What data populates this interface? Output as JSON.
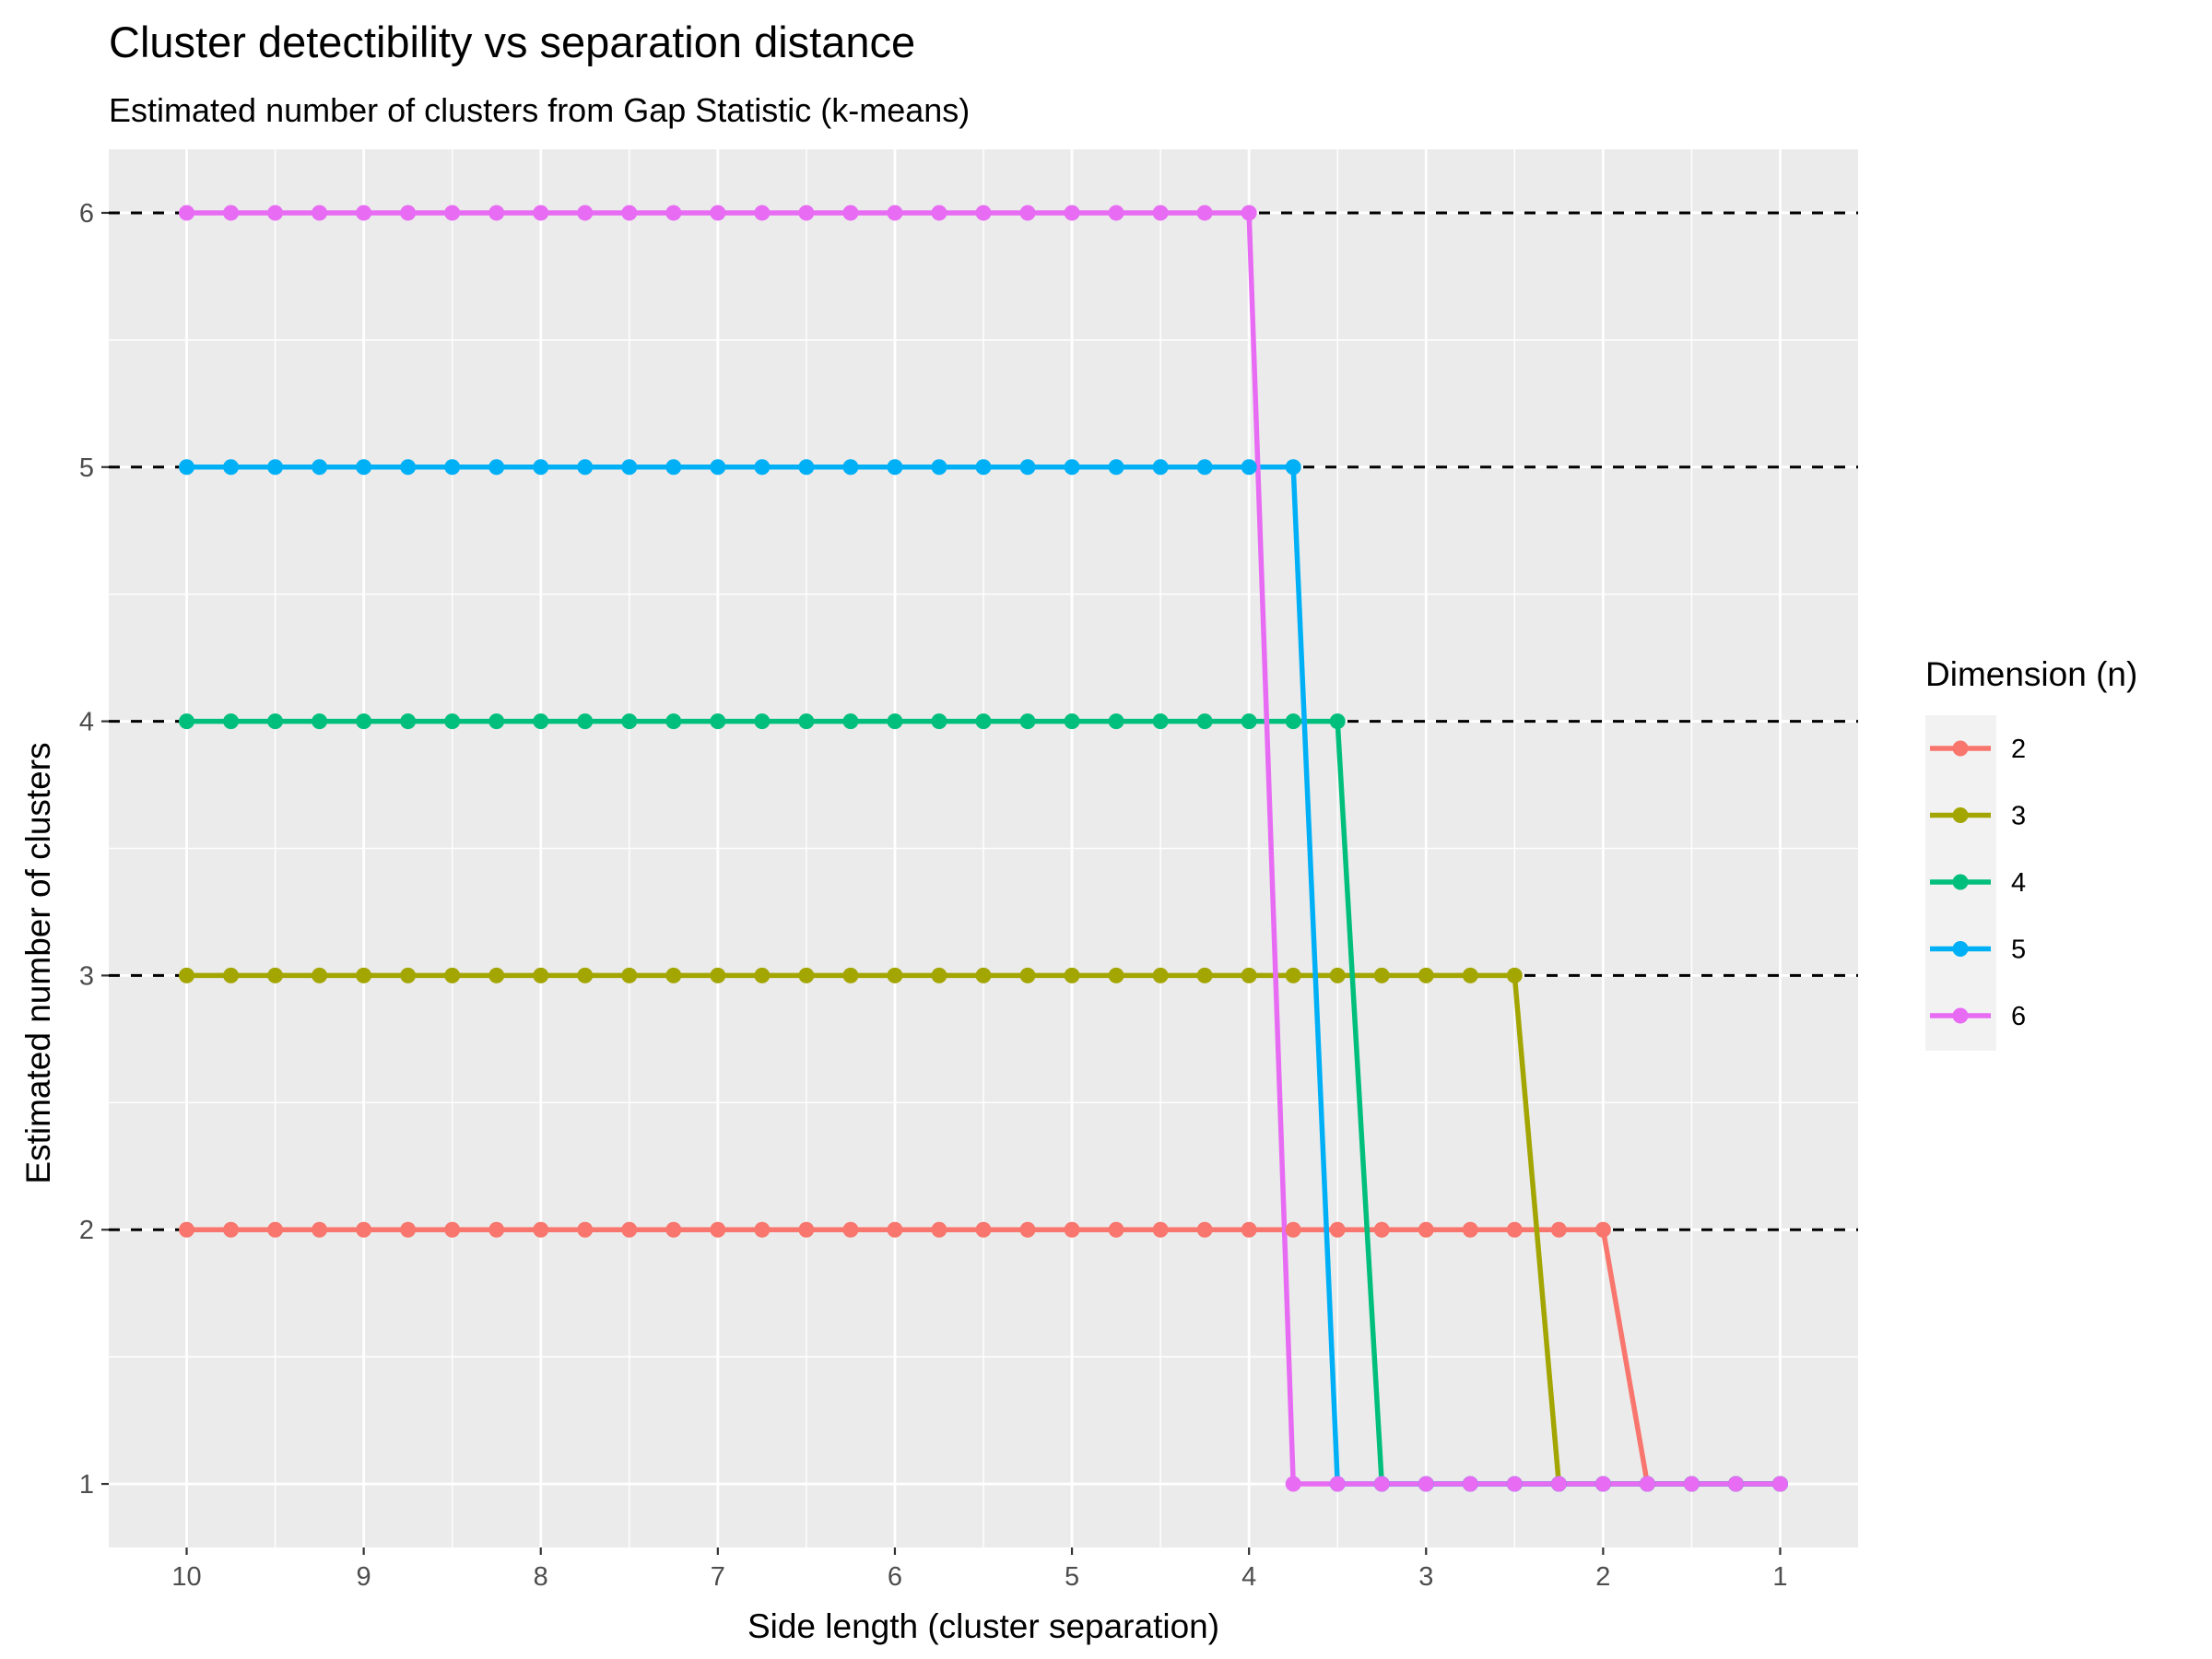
{
  "chart_data": {
    "type": "line",
    "title": "Cluster detectibility vs separation distance",
    "subtitle": "Estimated number of clusters from Gap Statistic (k-means)",
    "xlabel": "Side length (cluster separation)",
    "ylabel": "Estimated number of clusters",
    "x_reversed": true,
    "xlim": [
      0.56,
      10.44
    ],
    "ylim": [
      0.75,
      6.25
    ],
    "x_ticks": [
      "10",
      "9",
      "8",
      "7",
      "6",
      "5",
      "4",
      "3",
      "2",
      "1"
    ],
    "y_ticks": [
      "1",
      "2",
      "3",
      "4",
      "5",
      "6"
    ],
    "grid": true,
    "reference_lines_y": [
      2,
      3,
      4,
      5,
      6
    ],
    "legend_title": "Dimension (n)",
    "legend_position": "right",
    "x": [
      10,
      9.75,
      9.5,
      9.25,
      9,
      8.75,
      8.5,
      8.25,
      8,
      7.75,
      7.5,
      7.25,
      7,
      6.75,
      6.5,
      6.25,
      6,
      5.75,
      5.5,
      5.25,
      5,
      4.75,
      4.5,
      4.25,
      4,
      3.75,
      3.5,
      3.25,
      3,
      2.75,
      2.5,
      2.25,
      2,
      1.75,
      1.5,
      1.25,
      1
    ],
    "series": [
      {
        "name": "2",
        "color": "#F8766D",
        "values": [
          2,
          2,
          2,
          2,
          2,
          2,
          2,
          2,
          2,
          2,
          2,
          2,
          2,
          2,
          2,
          2,
          2,
          2,
          2,
          2,
          2,
          2,
          2,
          2,
          2,
          2,
          2,
          2,
          2,
          2,
          2,
          2,
          2,
          1,
          1,
          1,
          1
        ]
      },
      {
        "name": "3",
        "color": "#A3A500",
        "values": [
          3,
          3,
          3,
          3,
          3,
          3,
          3,
          3,
          3,
          3,
          3,
          3,
          3,
          3,
          3,
          3,
          3,
          3,
          3,
          3,
          3,
          3,
          3,
          3,
          3,
          3,
          3,
          3,
          3,
          3,
          3,
          1,
          1,
          1,
          1,
          1,
          1
        ]
      },
      {
        "name": "4",
        "color": "#00BF7D",
        "values": [
          4,
          4,
          4,
          4,
          4,
          4,
          4,
          4,
          4,
          4,
          4,
          4,
          4,
          4,
          4,
          4,
          4,
          4,
          4,
          4,
          4,
          4,
          4,
          4,
          4,
          4,
          4,
          1,
          1,
          1,
          1,
          1,
          1,
          1,
          1,
          1,
          1
        ]
      },
      {
        "name": "5",
        "color": "#00B0F6",
        "values": [
          5,
          5,
          5,
          5,
          5,
          5,
          5,
          5,
          5,
          5,
          5,
          5,
          5,
          5,
          5,
          5,
          5,
          5,
          5,
          5,
          5,
          5,
          5,
          5,
          5,
          5,
          1,
          1,
          1,
          1,
          1,
          1,
          1,
          1,
          1,
          1,
          1
        ]
      },
      {
        "name": "6",
        "color": "#E76BF3",
        "values": [
          6,
          6,
          6,
          6,
          6,
          6,
          6,
          6,
          6,
          6,
          6,
          6,
          6,
          6,
          6,
          6,
          6,
          6,
          6,
          6,
          6,
          6,
          6,
          6,
          6,
          1,
          1,
          1,
          1,
          1,
          1,
          1,
          1,
          1,
          1,
          1,
          1
        ]
      }
    ]
  }
}
